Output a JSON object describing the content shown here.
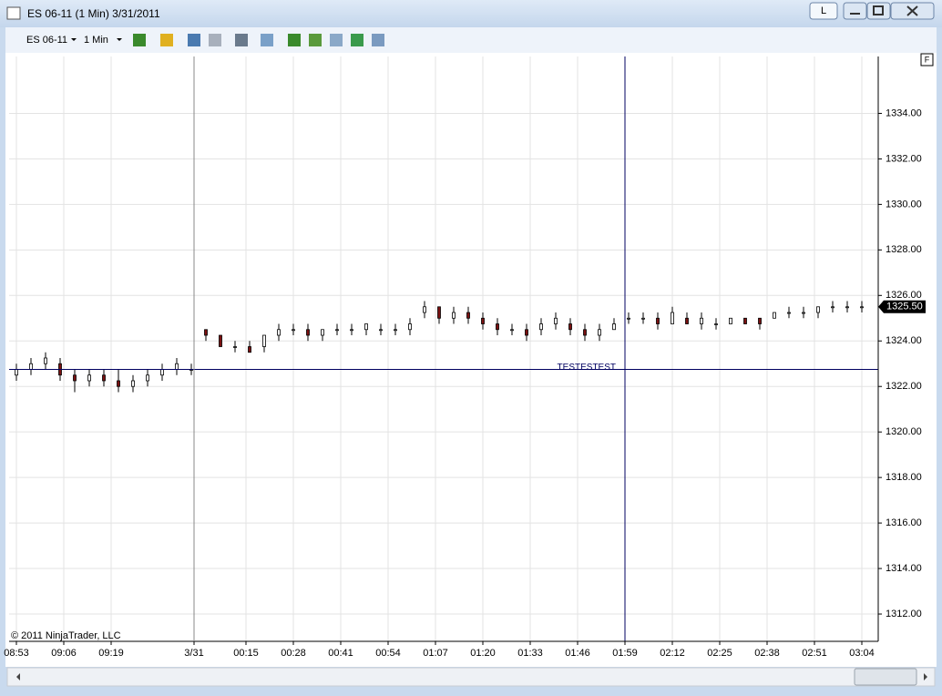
{
  "window": {
    "title": "ES 06-11 (1 Min)  3/31/2011",
    "instrument": "ES 06-11",
    "interval": "1 Min",
    "link_button": "L"
  },
  "chart_data": {
    "type": "candlestick",
    "x": [
      0,
      4,
      8,
      12,
      16,
      20,
      24,
      28,
      32,
      36,
      40,
      44,
      48,
      52,
      56,
      60,
      64,
      68,
      72,
      76,
      80,
      84,
      88,
      92,
      96,
      100,
      104,
      108,
      112,
      116,
      120,
      124,
      128,
      132,
      136,
      140,
      144,
      148,
      152,
      156,
      160,
      164,
      168,
      172,
      176,
      180,
      184,
      188,
      192,
      196,
      200,
      204,
      208,
      212,
      216,
      220,
      224,
      228,
      232
    ],
    "open": [
      1322.5,
      1322.75,
      1323.0,
      1323.0,
      1322.5,
      1322.25,
      1322.5,
      1322.25,
      1322.0,
      1322.25,
      1322.5,
      1322.75,
      1322.75,
      1324.5,
      1324.25,
      1323.75,
      1323.75,
      1323.75,
      1324.25,
      1324.5,
      1324.5,
      1324.25,
      1324.5,
      1324.5,
      1324.5,
      1324.5,
      1324.5,
      1324.5,
      1325.25,
      1325.5,
      1325.0,
      1325.25,
      1325.0,
      1324.75,
      1324.5,
      1324.5,
      1324.5,
      1324.75,
      1324.75,
      1324.5,
      1324.25,
      1324.5,
      1325.0,
      1325.0,
      1325.0,
      1324.75,
      1325.0,
      1324.75,
      1324.75,
      1324.75,
      1325.0,
      1325.0,
      1325.0,
      1325.25,
      1325.25,
      1325.25,
      1325.5,
      1325.5,
      1325.5
    ],
    "high": [
      1323.0,
      1323.25,
      1323.5,
      1323.25,
      1322.75,
      1322.75,
      1322.75,
      1322.75,
      1322.5,
      1322.75,
      1323.0,
      1323.25,
      1323.0,
      1324.5,
      1324.25,
      1324.0,
      1324.0,
      1324.25,
      1324.75,
      1324.75,
      1324.75,
      1324.5,
      1324.75,
      1324.75,
      1324.75,
      1324.75,
      1324.75,
      1325.0,
      1325.75,
      1325.5,
      1325.5,
      1325.5,
      1325.25,
      1325.0,
      1324.75,
      1324.75,
      1325.0,
      1325.25,
      1325.0,
      1324.75,
      1324.75,
      1325.0,
      1325.25,
      1325.25,
      1325.25,
      1325.5,
      1325.25,
      1325.25,
      1325.0,
      1325.0,
      1325.0,
      1325.0,
      1325.25,
      1325.5,
      1325.5,
      1325.5,
      1325.75,
      1325.75,
      1325.75
    ],
    "low": [
      1322.25,
      1322.5,
      1322.75,
      1322.25,
      1321.75,
      1322.0,
      1322.0,
      1321.75,
      1321.75,
      1322.0,
      1322.25,
      1322.5,
      1322.5,
      1324.0,
      1323.75,
      1323.5,
      1323.5,
      1323.5,
      1324.0,
      1324.25,
      1324.0,
      1324.0,
      1324.25,
      1324.25,
      1324.25,
      1324.25,
      1324.25,
      1324.25,
      1325.0,
      1324.75,
      1324.75,
      1324.75,
      1324.5,
      1324.25,
      1324.25,
      1324.0,
      1324.25,
      1324.5,
      1324.25,
      1324.0,
      1324.0,
      1324.5,
      1324.75,
      1324.75,
      1324.5,
      1324.75,
      1324.75,
      1324.5,
      1324.5,
      1324.75,
      1324.75,
      1324.5,
      1325.0,
      1325.0,
      1325.0,
      1325.0,
      1325.25,
      1325.25,
      1325.25
    ],
    "close": [
      1322.75,
      1323.0,
      1323.25,
      1322.5,
      1322.25,
      1322.5,
      1322.25,
      1322.0,
      1322.25,
      1322.5,
      1322.75,
      1323.0,
      1322.75,
      1324.25,
      1323.75,
      1323.75,
      1323.5,
      1324.25,
      1324.5,
      1324.5,
      1324.25,
      1324.5,
      1324.5,
      1324.5,
      1324.75,
      1324.5,
      1324.5,
      1324.75,
      1325.5,
      1325.0,
      1325.25,
      1325.0,
      1324.75,
      1324.5,
      1324.5,
      1324.25,
      1324.75,
      1325.0,
      1324.5,
      1324.25,
      1324.5,
      1324.75,
      1325.0,
      1325.0,
      1324.75,
      1325.25,
      1324.75,
      1325.0,
      1324.75,
      1325.0,
      1324.75,
      1324.75,
      1325.25,
      1325.25,
      1325.25,
      1325.5,
      1325.5,
      1325.5,
      1325.5
    ],
    "up_color": "#ffffff",
    "down_color": "#7a1010",
    "xlim": [
      -2,
      236.5
    ],
    "xticks": [
      {
        "value": 0,
        "label": "08:53"
      },
      {
        "value": 13,
        "label": "09:06"
      },
      {
        "value": 26,
        "label": "09:19"
      },
      {
        "value": 48.75,
        "label": "3/31"
      },
      {
        "value": 63,
        "label": "00:15"
      },
      {
        "value": 76,
        "label": "00:28"
      },
      {
        "value": 89,
        "label": "00:41"
      },
      {
        "value": 102,
        "label": "00:54"
      },
      {
        "value": 115,
        "label": "01:07"
      },
      {
        "value": 128,
        "label": "01:20"
      },
      {
        "value": 141,
        "label": "01:33"
      },
      {
        "value": 154,
        "label": "01:46"
      },
      {
        "value": 167,
        "label": "01:59"
      },
      {
        "value": 180,
        "label": "02:12"
      },
      {
        "value": 193,
        "label": "02:25"
      },
      {
        "value": 206,
        "label": "02:38"
      },
      {
        "value": 219,
        "label": "02:51"
      },
      {
        "value": 232,
        "label": "03:04"
      }
    ],
    "ylim": [
      1310.8,
      1336.5
    ],
    "yticks": [
      {
        "value": 1312,
        "label": "1312.00"
      },
      {
        "value": 1314,
        "label": "1314.00"
      },
      {
        "value": 1316,
        "label": "1316.00"
      },
      {
        "value": 1318,
        "label": "1318.00"
      },
      {
        "value": 1320,
        "label": "1320.00"
      },
      {
        "value": 1322,
        "label": "1322.00"
      },
      {
        "value": 1324,
        "label": "1324.00"
      },
      {
        "value": 1326,
        "label": "1326.00"
      },
      {
        "value": 1328,
        "label": "1328.00"
      },
      {
        "value": 1330,
        "label": "1330.00"
      },
      {
        "value": 1332,
        "label": "1332.00"
      },
      {
        "value": 1334,
        "label": "1334.00"
      }
    ],
    "grid": true,
    "horizontal_line": {
      "value": 1322.75,
      "label": "TESTESTEST"
    },
    "crosshair_x": 167,
    "last_price": {
      "value": 1325.5,
      "label": "1325.50"
    },
    "copyright": "© 2011 NinjaTrader, LLC",
    "panel_button": "F"
  }
}
